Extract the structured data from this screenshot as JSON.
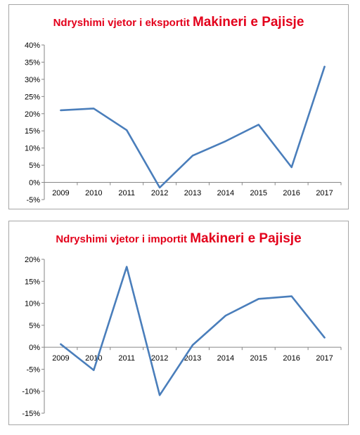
{
  "chart_data": [
    {
      "type": "line",
      "title_part1": "Ndryshimi vjetor i eksportit",
      "title_part2": "Makineri e Pajisje",
      "categories": [
        "2009",
        "2010",
        "2011",
        "2012",
        "2013",
        "2014",
        "2015",
        "2016",
        "2017"
      ],
      "series": [
        {
          "values": [
            21.0,
            21.5,
            15.2,
            -1.5,
            7.8,
            12.0,
            16.8,
            4.4,
            33.7
          ]
        }
      ],
      "y_ticks": [
        "40%",
        "35%",
        "30%",
        "25%",
        "20%",
        "15%",
        "10%",
        "5%",
        "0%",
        "-5%"
      ],
      "ylim": [
        -5,
        40
      ],
      "line_color": "#4a7ebb",
      "grid": false
    },
    {
      "type": "line",
      "title_part1": "Ndryshimi vjetor i importit",
      "title_part2": "Makineri e Pajisje",
      "categories": [
        "2009",
        "2010",
        "2011",
        "2012",
        "2013",
        "2014",
        "2015",
        "2016",
        "2017"
      ],
      "series": [
        {
          "values": [
            0.7,
            -5.2,
            18.3,
            -10.9,
            0.5,
            7.2,
            11.0,
            11.6,
            2.2
          ]
        }
      ],
      "y_ticks": [
        "20%",
        "15%",
        "10%",
        "5%",
        "0%",
        "-5%",
        "-10%",
        "-15%"
      ],
      "ylim": [
        -15,
        20
      ],
      "line_color": "#4a7ebb",
      "grid": false
    }
  ]
}
